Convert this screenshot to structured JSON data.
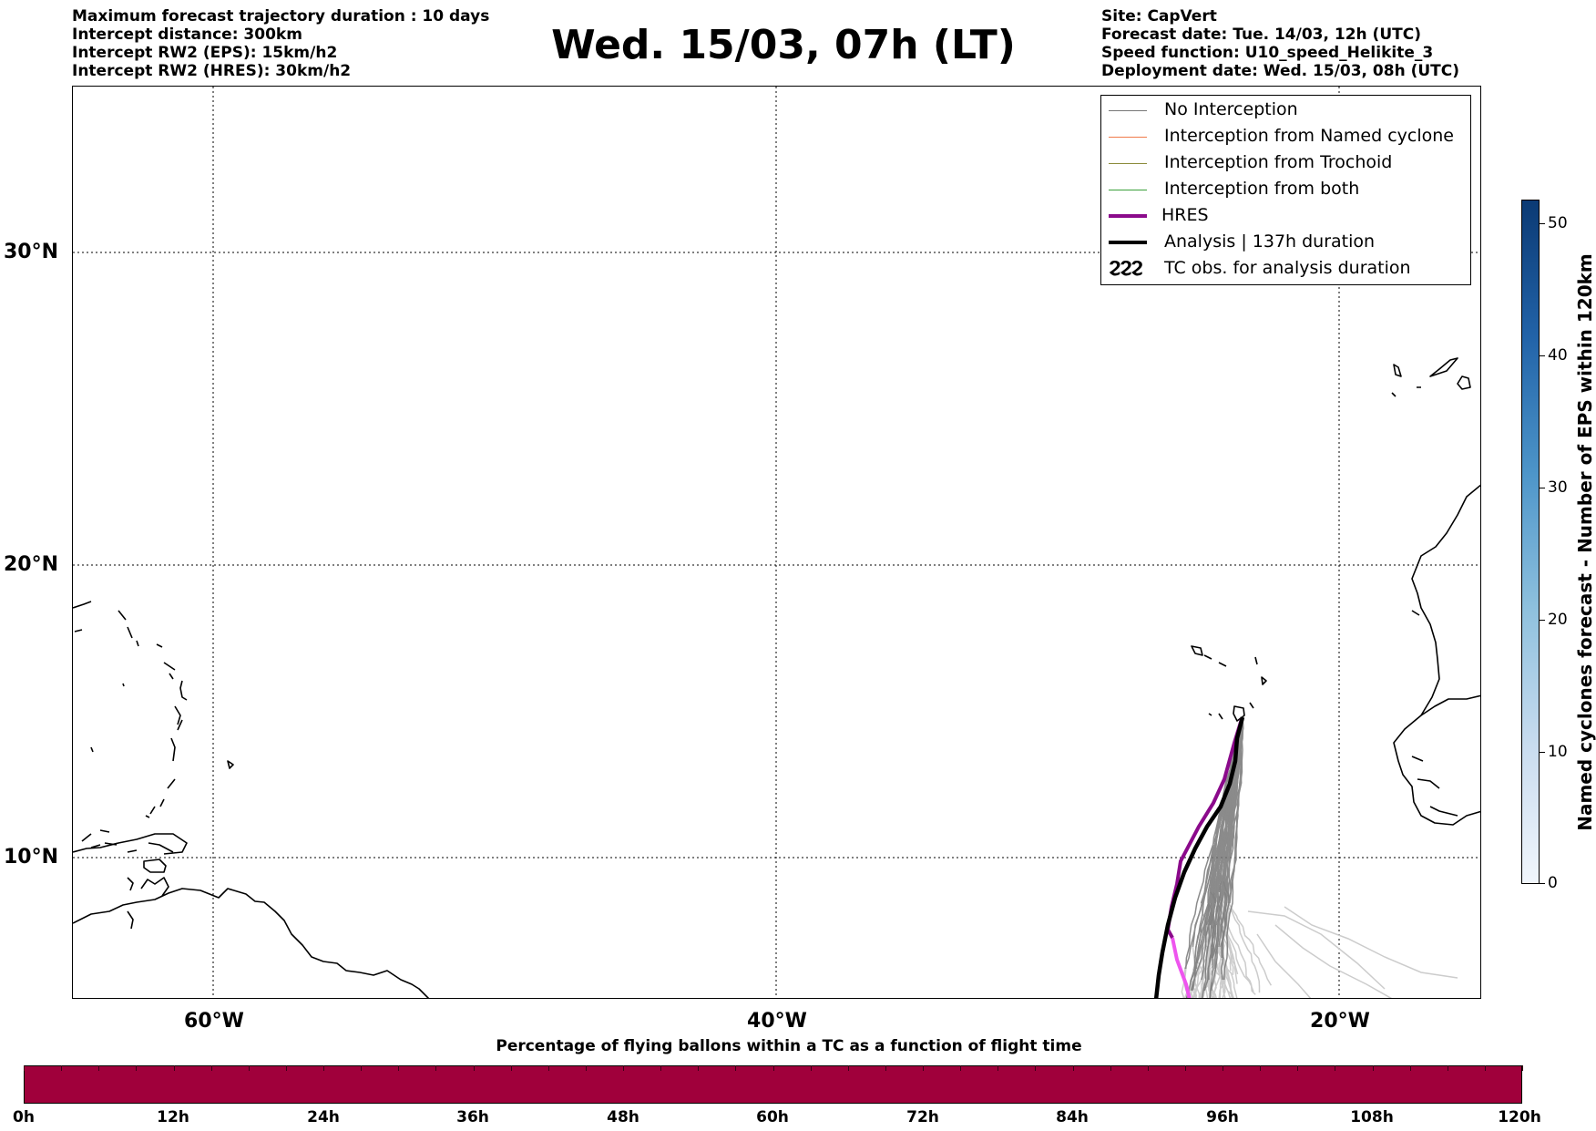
{
  "header_left": [
    "Maximum forecast trajectory duration : 10 days",
    "Intercept distance: 300km",
    "Intercept RW2 (EPS):  15km/h2",
    "Intercept RW2 (HRES): 30km/h2"
  ],
  "title": "Wed. 15/03, 07h (LT)",
  "header_right": [
    "Site: CapVert",
    "Forecast date: Tue. 14/03, 12h (UTC)",
    "Speed function: U10_speed_Helikite_3",
    "Deployment date: Wed. 15/03, 08h (UTC)"
  ],
  "map": {
    "lat_labels": [
      "30°N",
      "20°N",
      "10°N"
    ],
    "lon_labels": [
      "60°W",
      "40°W",
      "20°W"
    ],
    "colors": {
      "no_interception": "#777777",
      "named_cyclone": "#f07a4a",
      "trochoid": "#8a8a3a",
      "both": "#3aa03a",
      "hres": "#8b0a8b",
      "hres_late": "#ee55ee",
      "analysis": "#000000",
      "late_trajectories": "#cccccc"
    }
  },
  "legend": [
    {
      "label": "No Interception",
      "icon": "gray-thin-line"
    },
    {
      "label": "Interception from Named cyclone",
      "icon": "orange-thin-line"
    },
    {
      "label": "Interception from Trochoid",
      "icon": "olive-thin-line"
    },
    {
      "label": "Interception from both",
      "icon": "green-thin-line"
    },
    {
      "label": "HRES",
      "icon": "purple-thick-line"
    },
    {
      "label": "Analysis | 137h duration",
      "icon": "black-thick-line"
    },
    {
      "label": "TC obs. for analysis duration",
      "icon": "cyclone-symbol-icon",
      "symbol": "ϨϨϨ"
    }
  ],
  "colorbar": {
    "title": "Named cyclones forecast - Number of EPS within 120km",
    "ticks": [
      "0",
      "10",
      "20",
      "30",
      "40",
      "50"
    ]
  },
  "percentage_bar": {
    "title": "Percentage of flying ballons within a TC as a function of flight time",
    "color": "#a0003b",
    "ticks": [
      "0h",
      "12h",
      "24h",
      "36h",
      "48h",
      "60h",
      "72h",
      "84h",
      "96h",
      "108h",
      "120h"
    ]
  }
}
